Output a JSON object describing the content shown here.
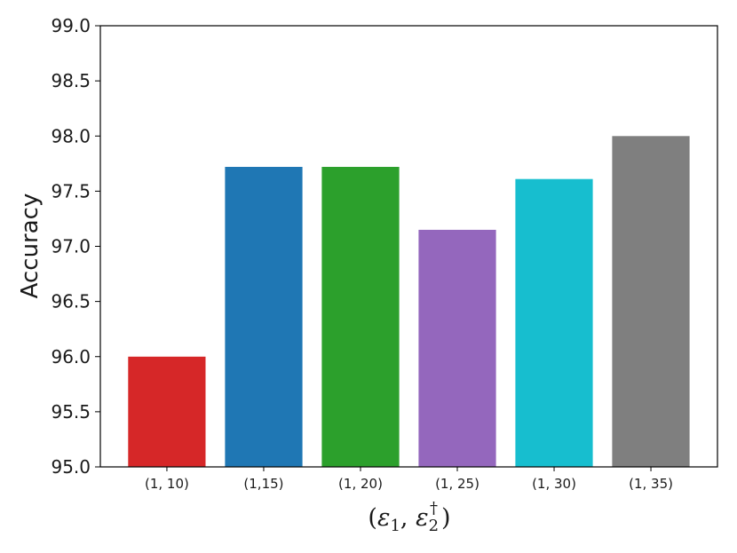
{
  "chart_data": {
    "type": "bar",
    "categories": [
      "(1, 10)",
      "(1,15)",
      "(1, 20)",
      "(1, 25)",
      "(1, 30)",
      "(1, 35)"
    ],
    "values": [
      96.0,
      97.72,
      97.72,
      97.15,
      97.61,
      98.0
    ],
    "colors": [
      "#d62728",
      "#1f77b4",
      "#2ca02c",
      "#9467bd",
      "#17becf",
      "#7f7f7f"
    ],
    "title": "",
    "ylabel": "Accuracy",
    "xlabel": {
      "open": "(",
      "eps1": "ε",
      "sub1": "1",
      "sep": ", ",
      "eps2": "ε",
      "sub2": "2",
      "sup2": "†",
      "close": ")"
    },
    "ylim": [
      95.0,
      99.0
    ],
    "yticks": [
      "95.0",
      "95.5",
      "96.0",
      "96.5",
      "97.0",
      "97.5",
      "98.0",
      "98.5",
      "99.0"
    ],
    "grid": false,
    "legend": "none"
  }
}
